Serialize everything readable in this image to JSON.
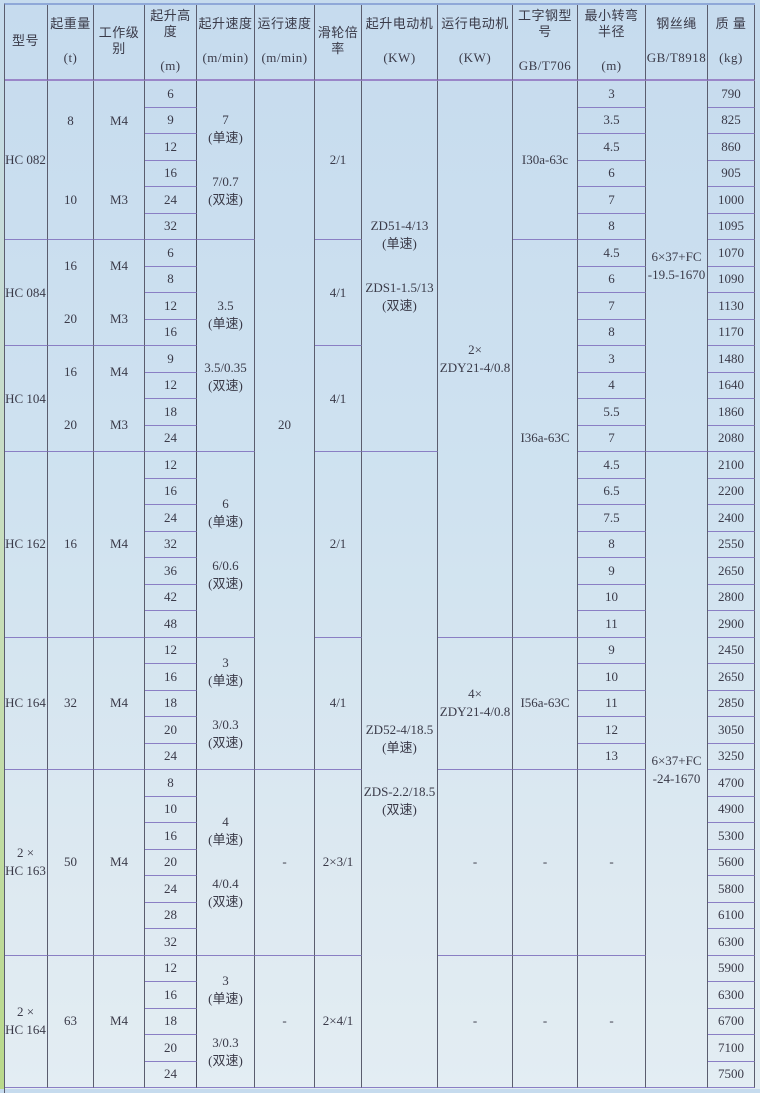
{
  "headers": [
    [
      "型号"
    ],
    [
      "起重量",
      "(t)"
    ],
    [
      "工作级别"
    ],
    [
      "起升高度",
      "(m)"
    ],
    [
      "起升速度",
      "(m/min)"
    ],
    [
      "运行速度",
      "(m/min)"
    ],
    [
      "滑轮倍率"
    ],
    [
      "起升电动机",
      "(KW)"
    ],
    [
      "运行电动机",
      "(KW)"
    ],
    [
      "工字钢型号",
      "GB/T706"
    ],
    [
      "最小转弯半径",
      "(m)"
    ],
    [
      "钢丝绳",
      "GB/T8918"
    ],
    [
      "质 量",
      "(kg)"
    ]
  ],
  "columns": [
    {
      "name": "model",
      "cells": [
        {
          "lines": [
            "HC 082"
          ],
          "rows": 6
        },
        {
          "lines": [
            "HC 084"
          ],
          "rows": 4
        },
        {
          "lines": [
            "HC 104"
          ],
          "rows": 4
        },
        {
          "lines": [
            "HC 162"
          ],
          "rows": 7
        },
        {
          "lines": [
            "HC 164"
          ],
          "rows": 5
        },
        {
          "lines": [
            "2 ×\nHC 163"
          ],
          "rows": 7
        },
        {
          "lines": [
            "2 ×\nHC 164"
          ],
          "rows": 5
        }
      ]
    },
    {
      "name": "capacity",
      "cells": [
        {
          "lines": [
            "8",
            "10"
          ],
          "rows": 6
        },
        {
          "lines": [
            "16",
            "20"
          ],
          "rows": 4
        },
        {
          "lines": [
            "16",
            "20"
          ],
          "rows": 4
        },
        {
          "lines": [
            "16"
          ],
          "rows": 7
        },
        {
          "lines": [
            "32"
          ],
          "rows": 5
        },
        {
          "lines": [
            "50"
          ],
          "rows": 7
        },
        {
          "lines": [
            "63"
          ],
          "rows": 5
        }
      ]
    },
    {
      "name": "duty-class",
      "cells": [
        {
          "lines": [
            "M4",
            "M3"
          ],
          "rows": 6
        },
        {
          "lines": [
            "M4",
            "M3"
          ],
          "rows": 4
        },
        {
          "lines": [
            "M4",
            "M3"
          ],
          "rows": 4
        },
        {
          "lines": [
            "M4"
          ],
          "rows": 7
        },
        {
          "lines": [
            "M4"
          ],
          "rows": 5
        },
        {
          "lines": [
            "M4"
          ],
          "rows": 7
        },
        {
          "lines": [
            "M4"
          ],
          "rows": 5
        }
      ]
    },
    {
      "name": "lift-height",
      "cells": [
        "6",
        "9",
        "12",
        "16",
        "24",
        "32",
        "6",
        "8",
        "12",
        "16",
        "9",
        "12",
        "18",
        "24",
        "12",
        "16",
        "24",
        "32",
        "36",
        "42",
        "48",
        "12",
        "16",
        "18",
        "20",
        "24",
        "8",
        "10",
        "16",
        "20",
        "24",
        "28",
        "32",
        "12",
        "16",
        "18",
        "20",
        "24"
      ]
    },
    {
      "name": "lift-speed",
      "cells": [
        {
          "lines": [
            "7\n(单速)",
            "7/0.7\n(双速)"
          ],
          "rows": 6
        },
        {
          "lines": [
            "3.5\n(单速)",
            "3.5/0.35\n(双速)"
          ],
          "rows": 8
        },
        {
          "lines": [
            "6\n(单速)",
            "6/0.6\n(双速)"
          ],
          "rows": 7
        },
        {
          "lines": [
            "3\n(单速)",
            "3/0.3\n(双速)"
          ],
          "rows": 5
        },
        {
          "lines": [
            "4\n(单速)",
            "4/0.4\n(双速)"
          ],
          "rows": 7
        },
        {
          "lines": [
            "3\n(单速)",
            "3/0.3\n(双速)"
          ],
          "rows": 5
        }
      ]
    },
    {
      "name": "travel-speed",
      "cells": [
        {
          "lines": [
            "20"
          ],
          "rows": 26
        },
        {
          "lines": [
            "-"
          ],
          "rows": 7
        },
        {
          "lines": [
            "-"
          ],
          "rows": 5
        }
      ]
    },
    {
      "name": "reeving-ratio",
      "cells": [
        {
          "lines": [
            "2/1"
          ],
          "rows": 6
        },
        {
          "lines": [
            "4/1"
          ],
          "rows": 4
        },
        {
          "lines": [
            "4/1"
          ],
          "rows": 4
        },
        {
          "lines": [
            "2/1"
          ],
          "rows": 7
        },
        {
          "lines": [
            "4/1"
          ],
          "rows": 5
        },
        {
          "lines": [
            "2×3/1"
          ],
          "rows": 7
        },
        {
          "lines": [
            "2×4/1"
          ],
          "rows": 5
        }
      ]
    },
    {
      "name": "lift-motor",
      "cells": [
        {
          "lines": [
            "ZD51-4/13\n(单速)",
            "ZDS1-1.5/13\n(双速)"
          ],
          "rows": 14
        },
        {
          "lines": [
            "ZD52-4/18.5\n(单速)",
            "ZDS-2.2/18.5\n(双速)"
          ],
          "rows": 24
        }
      ]
    },
    {
      "name": "travel-motor",
      "cells": [
        {
          "lines": [
            "2×\nZDY21-4/0.8"
          ],
          "rows": 21
        },
        {
          "lines": [
            "4×\nZDY21-4/0.8"
          ],
          "rows": 5
        },
        {
          "lines": [
            "-"
          ],
          "rows": 7
        },
        {
          "lines": [
            "-"
          ],
          "rows": 5
        }
      ]
    },
    {
      "name": "i-beam",
      "cells": [
        {
          "lines": [
            "I30a-63c"
          ],
          "rows": 6
        },
        {
          "lines": [
            "I36a-63C"
          ],
          "rows": 15
        },
        {
          "lines": [
            "I56a-63C"
          ],
          "rows": 5
        },
        {
          "lines": [
            "-"
          ],
          "rows": 7
        },
        {
          "lines": [
            "-"
          ],
          "rows": 5
        }
      ]
    },
    {
      "name": "min-turn-radius",
      "cells": [
        "3",
        "3.5",
        "4.5",
        "6",
        "7",
        "8",
        "4.5",
        "6",
        "7",
        "8",
        "3",
        "4",
        "5.5",
        "7",
        "4.5",
        "6.5",
        "7.5",
        "8",
        "9",
        "10",
        "11",
        "9",
        "10",
        "11",
        "12",
        "13",
        {
          "lines": [
            "-"
          ],
          "rows": 7
        },
        {
          "lines": [
            "-"
          ],
          "rows": 5
        }
      ]
    },
    {
      "name": "wire-rope",
      "cells": [
        {
          "lines": [
            "6×37+FC\n-19.5-1670"
          ],
          "rows": 14
        },
        {
          "lines": [
            "6×37+FC\n-24-1670"
          ],
          "rows": 24
        }
      ]
    },
    {
      "name": "mass",
      "cells": [
        "790",
        "825",
        "860",
        "905",
        "1000",
        "1095",
        "1070",
        "1090",
        "1130",
        "1170",
        "1480",
        "1640",
        "1860",
        "2080",
        "2100",
        "2200",
        "2400",
        "2550",
        "2650",
        "2800",
        "2900",
        "2450",
        "2650",
        "2850",
        "3050",
        "3250",
        "4700",
        "4900",
        "5300",
        "5600",
        "5800",
        "6100",
        "6300",
        "5900",
        "6300",
        "6700",
        "7100",
        "7500"
      ]
    }
  ]
}
